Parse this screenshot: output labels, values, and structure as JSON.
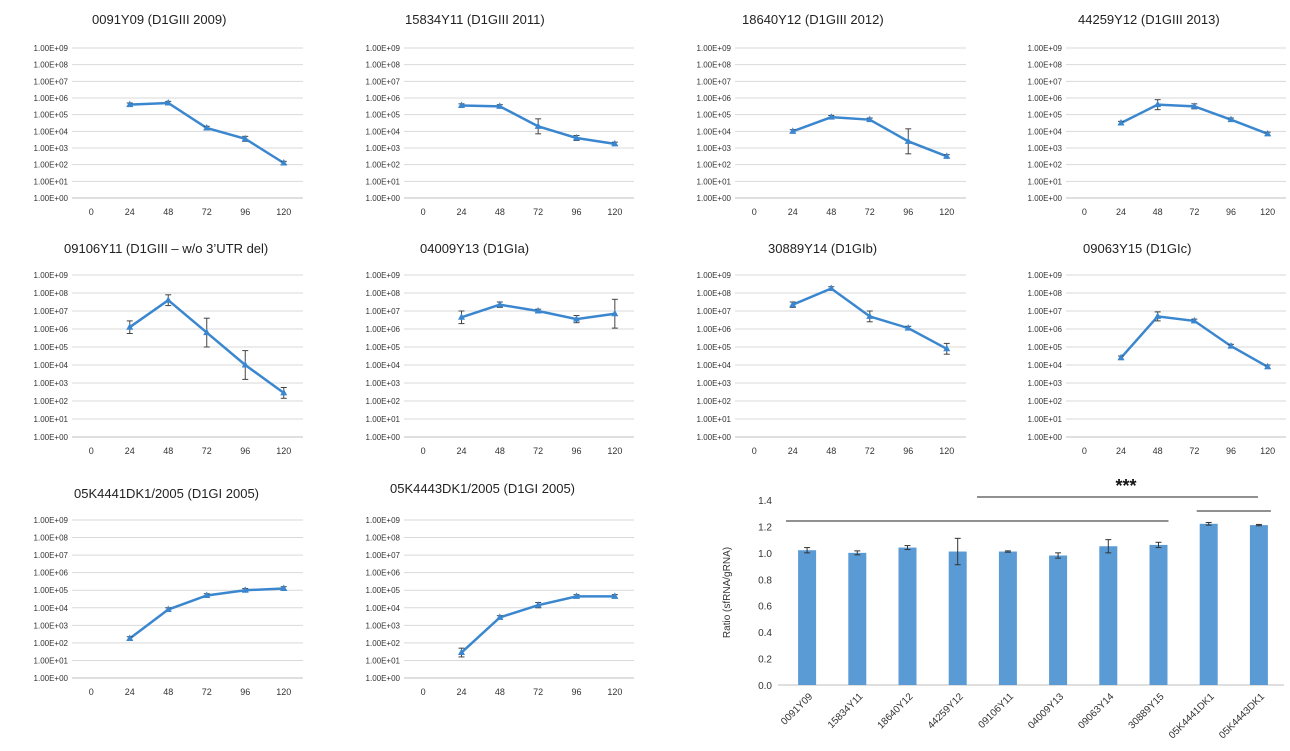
{
  "colors": {
    "series": "#3b87cf",
    "bar": "#5b9bd5",
    "grid": "#d9d9d9",
    "axis": "#bfbfbf",
    "text": "#333333"
  },
  "chart_data": [
    {
      "type": "line",
      "title": "0091Y09  (D1GIII 2009)",
      "x": [
        24,
        48,
        72,
        96,
        120
      ],
      "xticks": [
        "0",
        "24",
        "48",
        "72",
        "96",
        "120"
      ],
      "yticks": [
        "1.00E+00",
        "1.00E+01",
        "1.00E+02",
        "1.00E+03",
        "1.00E+04",
        "1.00E+05",
        "1.00E+06",
        "1.00E+07",
        "1.00E+08",
        "1.00E+09"
      ],
      "y_log10": [
        5.6,
        5.7,
        4.2,
        3.55,
        2.1
      ],
      "err_log10": [
        0.1,
        0.1,
        0.1,
        0.15,
        0.1
      ],
      "yscale": "log",
      "ylim": [
        1,
        1000000000.0
      ],
      "grid": true
    },
    {
      "type": "line",
      "title": "15834Y11  (D1GIII 2011)",
      "x": [
        24,
        48,
        72,
        96,
        120
      ],
      "xticks": [
        "0",
        "24",
        "48",
        "72",
        "96",
        "120"
      ],
      "yticks": [
        "1.00E+00",
        "1.00E+01",
        "1.00E+02",
        "1.00E+03",
        "1.00E+04",
        "1.00E+05",
        "1.00E+06",
        "1.00E+07",
        "1.00E+08",
        "1.00E+09"
      ],
      "y_log10": [
        5.55,
        5.5,
        4.3,
        3.6,
        3.25
      ],
      "err_log10": [
        0.1,
        0.1,
        0.45,
        0.15,
        0.1
      ],
      "yscale": "log",
      "ylim": [
        1,
        1000000000.0
      ],
      "grid": true
    },
    {
      "type": "line",
      "title": "18640Y12  (D1GIII 2012)",
      "x": [
        24,
        48,
        72,
        96,
        120
      ],
      "xticks": [
        "0",
        "24",
        "48",
        "72",
        "96",
        "120"
      ],
      "yticks": [
        "1.00E+00",
        "1.00E+01",
        "1.00E+02",
        "1.00E+03",
        "1.00E+04",
        "1.00E+05",
        "1.00E+06",
        "1.00E+07",
        "1.00E+08",
        "1.00E+09"
      ],
      "y_log10": [
        4.0,
        4.85,
        4.7,
        3.4,
        2.5
      ],
      "err_log10": [
        0.1,
        0.1,
        0.1,
        0.75,
        0.1
      ],
      "yscale": "log",
      "ylim": [
        1,
        1000000000.0
      ],
      "grid": true
    },
    {
      "type": "line",
      "title": "44259Y12  (D1GIII 2013)",
      "x": [
        24,
        48,
        72,
        96,
        120
      ],
      "xticks": [
        "0",
        "24",
        "48",
        "72",
        "96",
        "120"
      ],
      "yticks": [
        "1.00E+00",
        "1.00E+01",
        "1.00E+02",
        "1.00E+03",
        "1.00E+04",
        "1.00E+05",
        "1.00E+06",
        "1.00E+07",
        "1.00E+08",
        "1.00E+09"
      ],
      "y_log10": [
        4.5,
        5.6,
        5.5,
        4.7,
        3.85
      ],
      "err_log10": [
        0.1,
        0.3,
        0.15,
        0.1,
        0.1
      ],
      "yscale": "log",
      "ylim": [
        1,
        1000000000.0
      ],
      "grid": true
    },
    {
      "type": "line",
      "title": "09106Y11  (D1GIII – w/o 3’UTR del)",
      "x": [
        24,
        48,
        72,
        96,
        120
      ],
      "xticks": [
        "0",
        "24",
        "48",
        "72",
        "96",
        "120"
      ],
      "yticks": [
        "1.00E+00",
        "1.00E+01",
        "1.00E+02",
        "1.00E+03",
        "1.00E+04",
        "1.00E+05",
        "1.00E+06",
        "1.00E+07",
        "1.00E+08",
        "1.00E+09"
      ],
      "y_log10": [
        6.1,
        7.6,
        5.8,
        4.0,
        2.45
      ],
      "err_log10": [
        0.35,
        0.3,
        0.8,
        0.8,
        0.3
      ],
      "yscale": "log",
      "ylim": [
        1,
        1000000000.0
      ],
      "grid": true
    },
    {
      "type": "line",
      "title": "04009Y13  (D1GIa)",
      "x": [
        24,
        48,
        72,
        96,
        120
      ],
      "xticks": [
        "0",
        "24",
        "48",
        "72",
        "96",
        "120"
      ],
      "yticks": [
        "1.00E+00",
        "1.00E+01",
        "1.00E+02",
        "1.00E+03",
        "1.00E+04",
        "1.00E+05",
        "1.00E+06",
        "1.00E+07",
        "1.00E+08",
        "1.00E+09"
      ],
      "y_log10": [
        6.65,
        7.35,
        7.0,
        6.55,
        6.85
      ],
      "err_log10": [
        0.35,
        0.15,
        0.1,
        0.2,
        0.8
      ],
      "yscale": "log",
      "ylim": [
        1,
        1000000000.0
      ],
      "grid": true
    },
    {
      "type": "line",
      "title": "30889Y14  (D1GIb)",
      "x": [
        24,
        48,
        72,
        96,
        120
      ],
      "xticks": [
        "0",
        "24",
        "48",
        "72",
        "96",
        "120"
      ],
      "yticks": [
        "1.00E+00",
        "1.00E+01",
        "1.00E+02",
        "1.00E+03",
        "1.00E+04",
        "1.00E+05",
        "1.00E+06",
        "1.00E+07",
        "1.00E+08",
        "1.00E+09"
      ],
      "y_log10": [
        7.35,
        8.25,
        6.7,
        6.05,
        4.9
      ],
      "err_log10": [
        0.15,
        0.1,
        0.3,
        0.1,
        0.3
      ],
      "yscale": "log",
      "ylim": [
        1,
        1000000000.0
      ],
      "grid": true
    },
    {
      "type": "line",
      "title": "09063Y15  (D1GIc)",
      "x": [
        24,
        48,
        72,
        96,
        120
      ],
      "xticks": [
        "0",
        "24",
        "48",
        "72",
        "96",
        "120"
      ],
      "yticks": [
        "1.00E+00",
        "1.00E+01",
        "1.00E+02",
        "1.00E+03",
        "1.00E+04",
        "1.00E+05",
        "1.00E+06",
        "1.00E+07",
        "1.00E+08",
        "1.00E+09"
      ],
      "y_log10": [
        4.4,
        6.7,
        6.45,
        5.05,
        3.9
      ],
      "err_log10": [
        0.1,
        0.25,
        0.1,
        0.1,
        0.1
      ],
      "yscale": "log",
      "ylim": [
        1,
        1000000000.0
      ],
      "grid": true
    },
    {
      "type": "line",
      "title": "05K4441DK1/2005   (D1GI 2005)",
      "x": [
        24,
        48,
        72,
        96,
        120
      ],
      "xticks": [
        "0",
        "24",
        "48",
        "72",
        "96",
        "120"
      ],
      "yticks": [
        "1.00E+00",
        "1.00E+01",
        "1.00E+02",
        "1.00E+03",
        "1.00E+04",
        "1.00E+05",
        "1.00E+06",
        "1.00E+07",
        "1.00E+08",
        "1.00E+09"
      ],
      "y_log10": [
        2.25,
        3.9,
        4.7,
        5.0,
        5.1
      ],
      "err_log10": [
        0.1,
        0.1,
        0.1,
        0.1,
        0.1
      ],
      "yscale": "log",
      "ylim": [
        1,
        1000000000.0
      ],
      "grid": true
    },
    {
      "type": "line",
      "title": "05K4443DK1/2005   (D1GI 2005)",
      "x": [
        24,
        48,
        72,
        96,
        120
      ],
      "xticks": [
        "0",
        "24",
        "48",
        "72",
        "96",
        "120"
      ],
      "yticks": [
        "1.00E+00",
        "1.00E+01",
        "1.00E+02",
        "1.00E+03",
        "1.00E+04",
        "1.00E+05",
        "1.00E+06",
        "1.00E+07",
        "1.00E+08",
        "1.00E+09"
      ],
      "y_log10": [
        1.45,
        3.45,
        4.15,
        4.65,
        4.65
      ],
      "err_log10": [
        0.25,
        0.1,
        0.15,
        0.1,
        0.1
      ],
      "yscale": "log",
      "ylim": [
        1,
        1000000000.0
      ],
      "grid": true
    },
    {
      "type": "bar",
      "title": "",
      "categories": [
        "0091Y09",
        "15834Y11",
        "18640Y12",
        "44259Y12",
        "09106Y11",
        "04009Y13",
        "09063Y14",
        "30889Y15",
        "05K4441DK1",
        "05K4443DK1"
      ],
      "values": [
        1.02,
        1.0,
        1.04,
        1.01,
        1.01,
        0.98,
        1.05,
        1.06,
        1.22,
        1.21
      ],
      "errors": [
        0.02,
        0.015,
        0.015,
        0.1,
        0.005,
        0.02,
        0.05,
        0.02,
        0.01,
        0.005
      ],
      "ylabel": "Ratio (sfRNA/gRNA)",
      "ylim": [
        0,
        1.4
      ],
      "yticks": [
        "0.0",
        "0.2",
        "0.4",
        "0.6",
        "0.8",
        "1.0",
        "1.2",
        "1.4"
      ],
      "annotation": "***",
      "grid": false
    }
  ]
}
